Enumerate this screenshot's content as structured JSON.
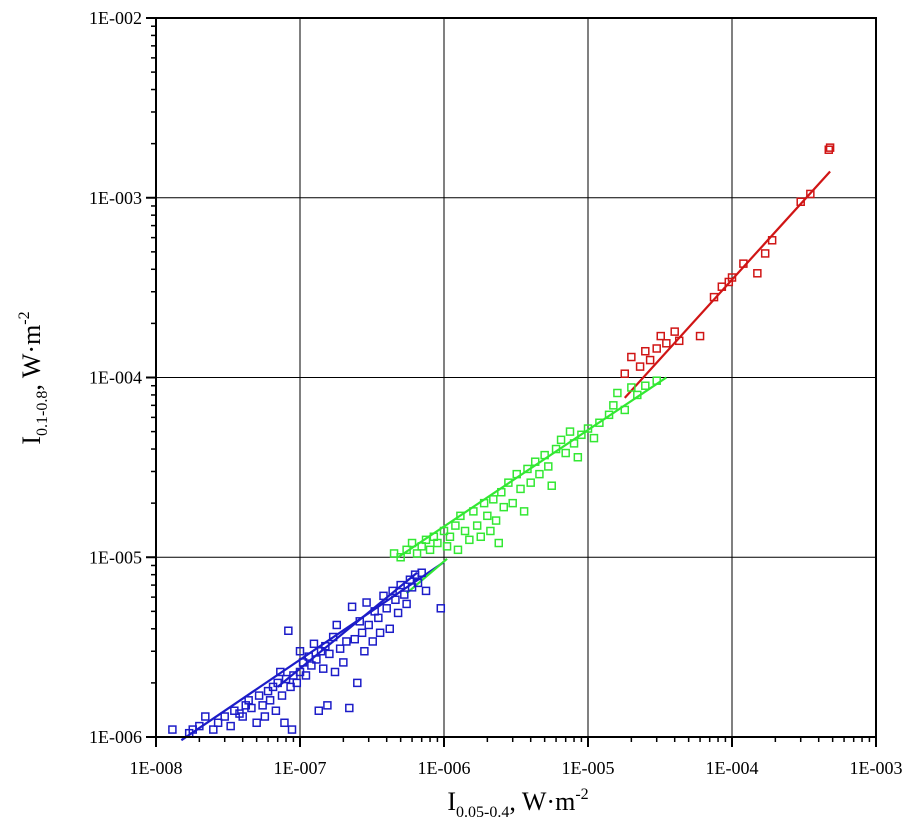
{
  "chart_data": {
    "type": "scatter",
    "title": "",
    "xlabel": {
      "main": "I",
      "sub": "0.05-0.4",
      "rest": ", W·m",
      "sup": "-2"
    },
    "ylabel": {
      "main": "I",
      "sub": "0.1-0.8",
      "rest": ",  W·m",
      "sup": "-2"
    },
    "x_scale": "log",
    "y_scale": "log",
    "xlim": [
      1e-08,
      0.001
    ],
    "ylim": [
      1e-06,
      0.01
    ],
    "x_tick_labels": [
      "1E-008",
      "1E-007",
      "1E-006",
      "1E-005",
      "1E-004",
      "1E-003"
    ],
    "y_tick_labels": [
      "1E-006",
      "1E-005",
      "1E-004",
      "1E-003",
      "1E-002"
    ],
    "grid": true,
    "series": [
      {
        "color": "#1c1cc8",
        "marker": "open-square",
        "points": [
          [
            1.3e-08,
            1.1e-06
          ],
          [
            1.7e-08,
            1.05e-06
          ],
          [
            1.8e-08,
            1.1e-06
          ],
          [
            2e-08,
            1.15e-06
          ],
          [
            2.2e-08,
            1.3e-06
          ],
          [
            2.5e-08,
            1.1e-06
          ],
          [
            2.7e-08,
            1.2e-06
          ],
          [
            3e-08,
            1.3e-06
          ],
          [
            3.3e-08,
            1.15e-06
          ],
          [
            3.5e-08,
            1.4e-06
          ],
          [
            3.8e-08,
            1.35e-06
          ],
          [
            4e-08,
            1.3e-06
          ],
          [
            4.2e-08,
            1.5e-06
          ],
          [
            4.4e-08,
            1.6e-06
          ],
          [
            4.6e-08,
            1.45e-06
          ],
          [
            5e-08,
            1.2e-06
          ],
          [
            5.2e-08,
            1.7e-06
          ],
          [
            5.5e-08,
            1.5e-06
          ],
          [
            5.7e-08,
            1.3e-06
          ],
          [
            6e-08,
            1.8e-06
          ],
          [
            6.2e-08,
            1.6e-06
          ],
          [
            6.5e-08,
            1.9e-06
          ],
          [
            6.8e-08,
            1.4e-06
          ],
          [
            7e-08,
            2e-06
          ],
          [
            7.3e-08,
            2.3e-06
          ],
          [
            7.5e-08,
            1.7e-06
          ],
          [
            7.8e-08,
            1.2e-06
          ],
          [
            8e-08,
            2.1e-06
          ],
          [
            8.3e-08,
            3.9e-06
          ],
          [
            8.6e-08,
            1.9e-06
          ],
          [
            8.8e-08,
            1.1e-06
          ],
          [
            9e-08,
            2.2e-06
          ],
          [
            9.5e-08,
            2e-06
          ],
          [
            1e-07,
            2.3e-06
          ],
          [
            1e-07,
            3e-06
          ],
          [
            1.05e-07,
            2.6e-06
          ],
          [
            1.1e-07,
            2.2e-06
          ],
          [
            1.15e-07,
            2.8e-06
          ],
          [
            1.2e-07,
            2.5e-06
          ],
          [
            1.25e-07,
            3.3e-06
          ],
          [
            1.3e-07,
            2.7e-06
          ],
          [
            1.35e-07,
            1.4e-06
          ],
          [
            1.4e-07,
            3e-06
          ],
          [
            1.45e-07,
            2.4e-06
          ],
          [
            1.5e-07,
            3.2e-06
          ],
          [
            1.55e-07,
            1.5e-06
          ],
          [
            1.6e-07,
            2.9e-06
          ],
          [
            1.7e-07,
            3.6e-06
          ],
          [
            1.75e-07,
            2.3e-06
          ],
          [
            1.8e-07,
            4.2e-06
          ],
          [
            1.9e-07,
            3.1e-06
          ],
          [
            2e-07,
            2.6e-06
          ],
          [
            2.1e-07,
            3.4e-06
          ],
          [
            2.2e-07,
            1.45e-06
          ],
          [
            2.3e-07,
            5.3e-06
          ],
          [
            2.4e-07,
            3.5e-06
          ],
          [
            2.5e-07,
            2e-06
          ],
          [
            2.6e-07,
            4.4e-06
          ],
          [
            2.7e-07,
            3.8e-06
          ],
          [
            2.8e-07,
            3e-06
          ],
          [
            2.9e-07,
            5.6e-06
          ],
          [
            3e-07,
            4.2e-06
          ],
          [
            3.2e-07,
            3.4e-06
          ],
          [
            3.3e-07,
            5e-06
          ],
          [
            3.5e-07,
            4.6e-06
          ],
          [
            3.6e-07,
            3.8e-06
          ],
          [
            3.8e-07,
            6.1e-06
          ],
          [
            4e-07,
            5.2e-06
          ],
          [
            4.2e-07,
            4e-06
          ],
          [
            4.4e-07,
            6.5e-06
          ],
          [
            4.6e-07,
            5.8e-06
          ],
          [
            4.8e-07,
            4.9e-06
          ],
          [
            5e-07,
            7e-06
          ],
          [
            5.3e-07,
            6.2e-06
          ],
          [
            5.5e-07,
            5.5e-06
          ],
          [
            5.8e-07,
            7.5e-06
          ],
          [
            6e-07,
            6.8e-06
          ],
          [
            6.3e-07,
            8e-06
          ],
          [
            6.6e-07,
            7.2e-06
          ],
          [
            7e-07,
            8.2e-06
          ],
          [
            7.5e-07,
            6.5e-06
          ],
          [
            9.5e-07,
            5.2e-06
          ]
        ]
      },
      {
        "color": "#33e833",
        "marker": "open-square",
        "points": [
          [
            4.5e-07,
            1.05e-05
          ],
          [
            5e-07,
            1e-05
          ],
          [
            5.5e-07,
            1.1e-05
          ],
          [
            6e-07,
            1.2e-05
          ],
          [
            6.5e-07,
            1.05e-05
          ],
          [
            7e-07,
            1.15e-05
          ],
          [
            7.5e-07,
            1.25e-05
          ],
          [
            8e-07,
            1.1e-05
          ],
          [
            8.5e-07,
            1.3e-05
          ],
          [
            9e-07,
            1.2e-05
          ],
          [
            1e-06,
            1.4e-05
          ],
          [
            1.05e-06,
            1.15e-05
          ],
          [
            1.1e-06,
            1.3e-05
          ],
          [
            1.2e-06,
            1.5e-05
          ],
          [
            1.25e-06,
            1.1e-05
          ],
          [
            1.3e-06,
            1.7e-05
          ],
          [
            1.4e-06,
            1.4e-05
          ],
          [
            1.5e-06,
            1.25e-05
          ],
          [
            1.6e-06,
            1.8e-05
          ],
          [
            1.7e-06,
            1.5e-05
          ],
          [
            1.8e-06,
            1.3e-05
          ],
          [
            1.9e-06,
            2e-05
          ],
          [
            2e-06,
            1.7e-05
          ],
          [
            2.1e-06,
            1.4e-05
          ],
          [
            2.2e-06,
            2.1e-05
          ],
          [
            2.3e-06,
            1.6e-05
          ],
          [
            2.4e-06,
            1.2e-05
          ],
          [
            2.5e-06,
            2.3e-05
          ],
          [
            2.6e-06,
            1.9e-05
          ],
          [
            2.8e-06,
            2.6e-05
          ],
          [
            3e-06,
            2e-05
          ],
          [
            3.2e-06,
            2.9e-05
          ],
          [
            3.4e-06,
            2.4e-05
          ],
          [
            3.6e-06,
            1.8e-05
          ],
          [
            3.8e-06,
            3.1e-05
          ],
          [
            4e-06,
            2.6e-05
          ],
          [
            4.3e-06,
            3.4e-05
          ],
          [
            4.6e-06,
            2.9e-05
          ],
          [
            5e-06,
            3.7e-05
          ],
          [
            5.3e-06,
            3.2e-05
          ],
          [
            5.6e-06,
            2.5e-05
          ],
          [
            6e-06,
            4e-05
          ],
          [
            6.5e-06,
            4.5e-05
          ],
          [
            7e-06,
            3.8e-05
          ],
          [
            7.5e-06,
            5e-05
          ],
          [
            8e-06,
            4.3e-05
          ],
          [
            8.5e-06,
            3.6e-05
          ],
          [
            9e-06,
            4.8e-05
          ],
          [
            1e-05,
            5.2e-05
          ],
          [
            1.1e-05,
            4.6e-05
          ],
          [
            1.2e-05,
            5.6e-05
          ],
          [
            1.4e-05,
            6.2e-05
          ],
          [
            1.5e-05,
            7e-05
          ],
          [
            1.6e-05,
            8.2e-05
          ],
          [
            1.8e-05,
            6.6e-05
          ],
          [
            2e-05,
            8.8e-05
          ],
          [
            2.2e-05,
            8e-05
          ],
          [
            2.5e-05,
            9e-05
          ],
          [
            3e-05,
            9.6e-05
          ]
        ]
      },
      {
        "color": "#d01515",
        "marker": "open-square",
        "points": [
          [
            1.8e-05,
            0.000105
          ],
          [
            2e-05,
            0.00013
          ],
          [
            2.3e-05,
            0.000115
          ],
          [
            2.5e-05,
            0.00014
          ],
          [
            2.7e-05,
            0.000125
          ],
          [
            3e-05,
            0.000145
          ],
          [
            3.2e-05,
            0.00017
          ],
          [
            3.5e-05,
            0.000155
          ],
          [
            4e-05,
            0.00018
          ],
          [
            4.3e-05,
            0.00016
          ],
          [
            6e-05,
            0.00017
          ],
          [
            7.5e-05,
            0.00028
          ],
          [
            8.5e-05,
            0.00032
          ],
          [
            9.5e-05,
            0.00034
          ],
          [
            0.0001,
            0.00036
          ],
          [
            0.00012,
            0.00043
          ],
          [
            0.00015,
            0.00038
          ],
          [
            0.00017,
            0.00049
          ],
          [
            0.00019,
            0.00058
          ],
          [
            0.0003,
            0.00095
          ],
          [
            0.00035,
            0.00105
          ],
          [
            0.00047,
            0.00185
          ],
          [
            0.00048,
            0.0019
          ]
        ]
      }
    ],
    "fits": [
      {
        "color": "#1c1cc8",
        "x": [
          1.5e-08,
          1e-06
        ],
        "y": [
          9.6e-07,
          9.4e-06
        ]
      },
      {
        "color": "#1c1cc8",
        "x": [
          7e-08,
          6.5e-07
        ],
        "y": [
          1.9e-06,
          8.2e-06
        ]
      },
      {
        "color": "#33e833",
        "x": [
          4.8e-07,
          3.5e-05
        ],
        "y": [
          1e-05,
          0.0001
        ]
      },
      {
        "color": "#33e833",
        "x": [
          5.5e-07,
          1.05e-06
        ],
        "y": [
          6.3e-06,
          9.8e-06
        ]
      },
      {
        "color": "#d01515",
        "x": [
          1.8e-05,
          0.00048
        ],
        "y": [
          7.7e-05,
          0.0014
        ]
      }
    ]
  }
}
